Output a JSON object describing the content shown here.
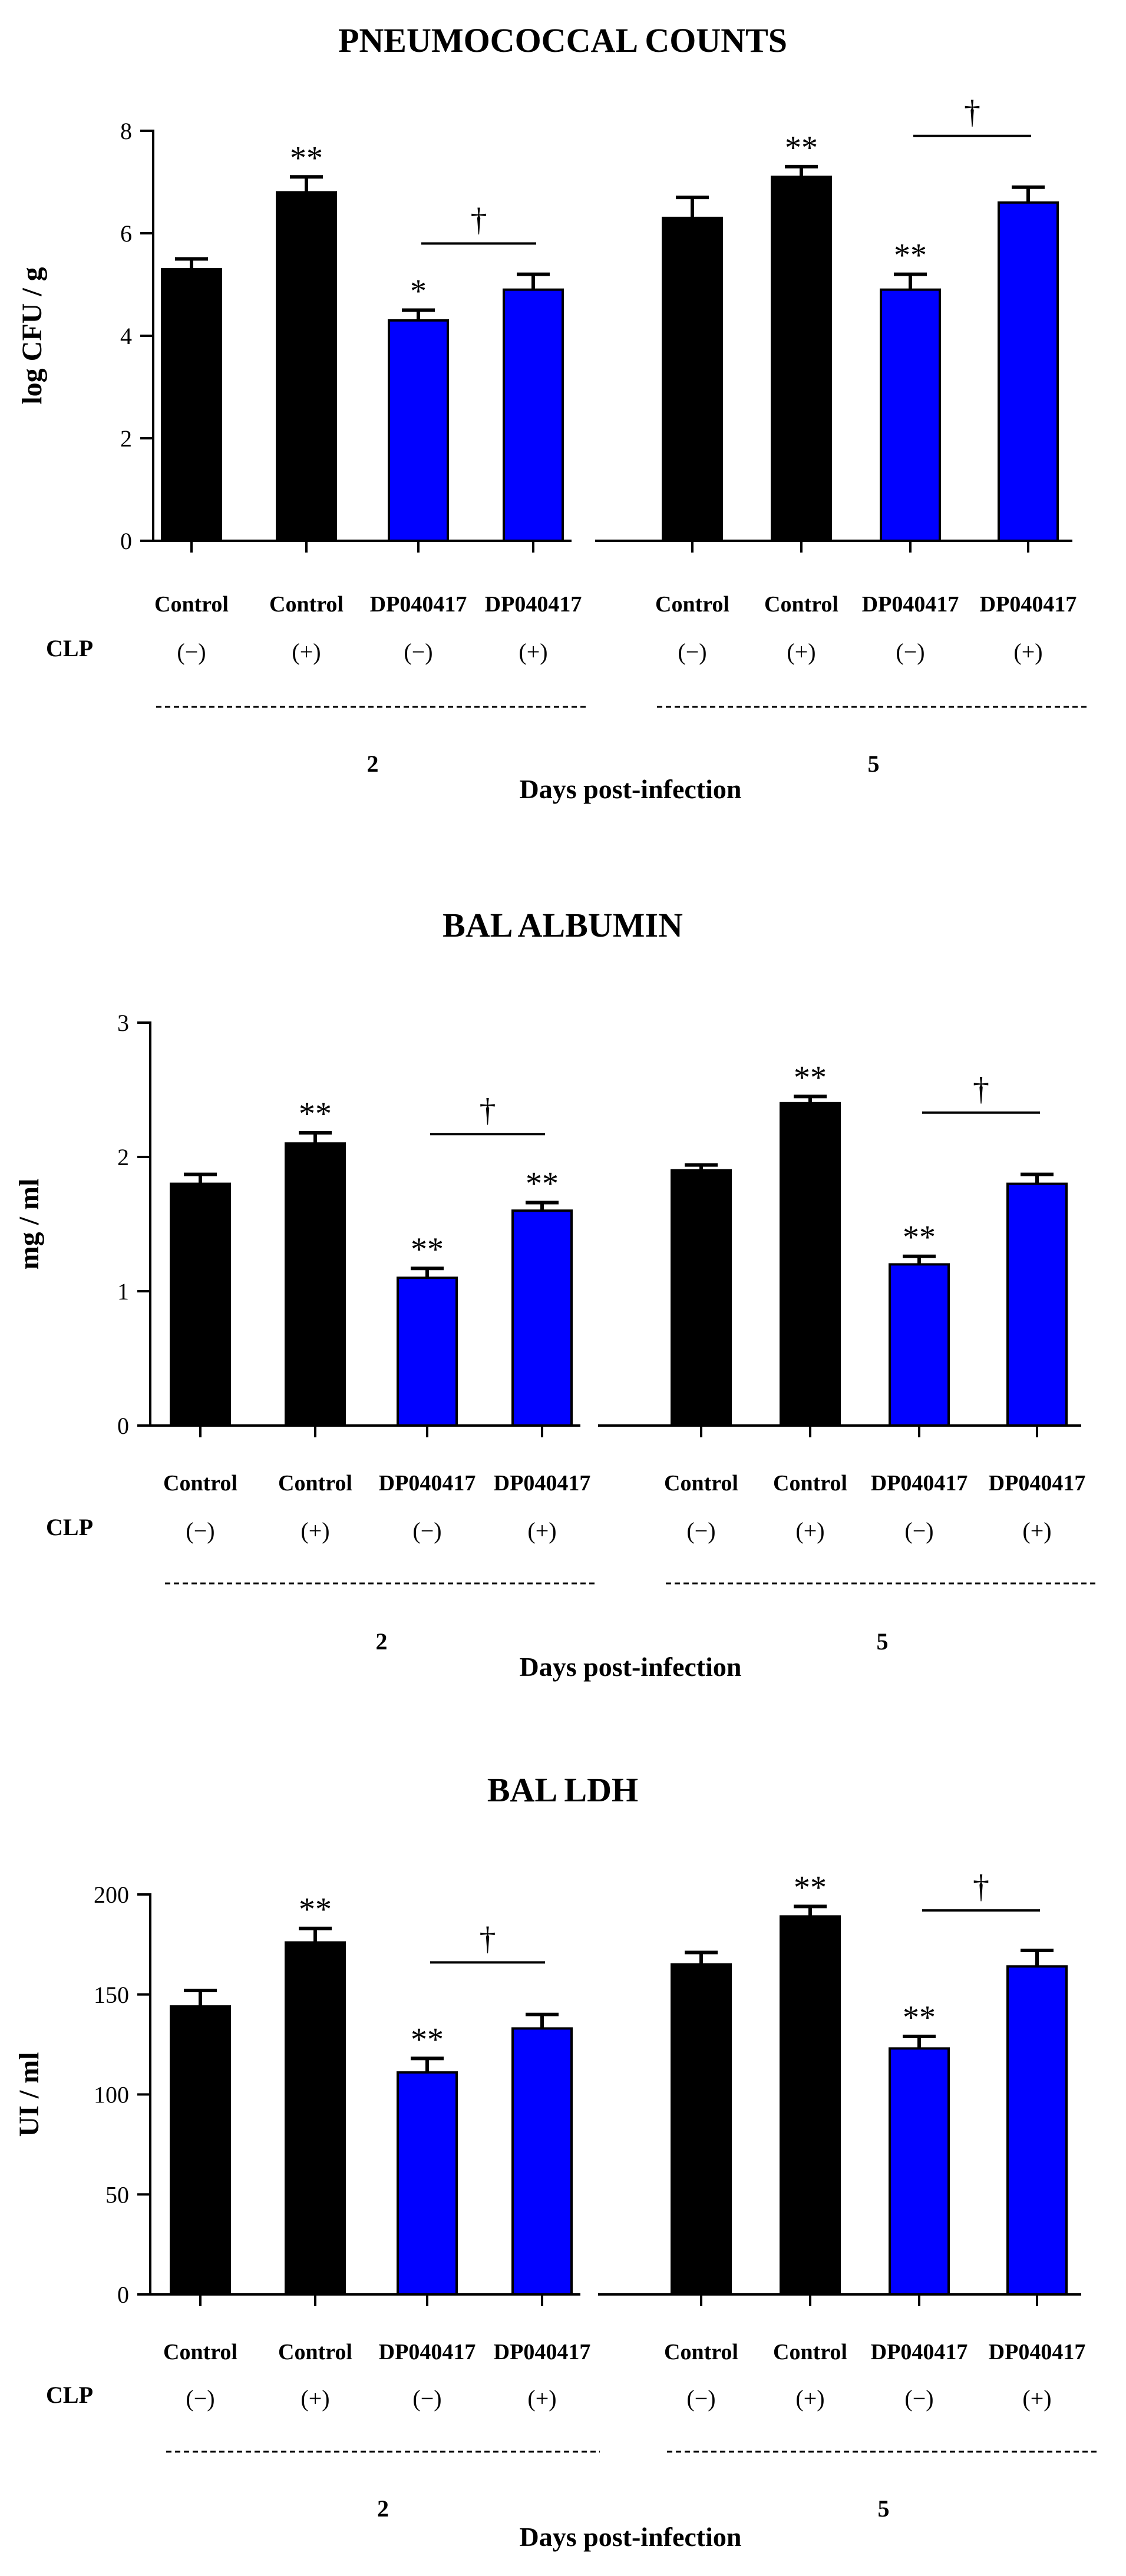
{
  "figure": {
    "charts": [
      {
        "type": "bar",
        "title": "PNEUMOCOCCAL COUNTS",
        "ylabel": "log CFU / g",
        "xlabel": "Days post-infection",
        "ylim": [
          0,
          8
        ],
        "yticks": [
          0,
          2,
          4,
          6,
          8
        ],
        "row_label": "CLP",
        "days": [
          "2",
          "5"
        ],
        "categories": [
          "Control",
          "Control",
          "DP040417",
          "DP040417",
          "Control",
          "Control",
          "DP040417",
          "DP040417"
        ],
        "clp": [
          "(−)",
          "(+)",
          "(−)",
          "(+)",
          "(−)",
          "(+)",
          "(−)",
          "(+)"
        ],
        "values": [
          5.3,
          6.8,
          4.3,
          4.9,
          6.3,
          7.1,
          4.9,
          6.6
        ],
        "errors": [
          0.2,
          0.3,
          0.2,
          0.3,
          0.4,
          0.2,
          0.3,
          0.3
        ],
        "bar_colors": [
          "#000000",
          "#000000",
          "#0000ff",
          "#0000ff",
          "#000000",
          "#000000",
          "#0000ff",
          "#0000ff"
        ],
        "significance": [
          "",
          "**",
          "*",
          "",
          "",
          "**",
          "**",
          ""
        ],
        "comparisons": [
          {
            "bars": [
              2,
              3
            ],
            "symbol": "†",
            "level": 5.8
          },
          {
            "bars": [
              6,
              7
            ],
            "symbol": "†",
            "level": 7.9
          }
        ]
      },
      {
        "type": "bar",
        "title": "BAL ALBUMIN",
        "ylabel": "mg / ml",
        "xlabel": "Days post-infection",
        "ylim": [
          0,
          3
        ],
        "yticks": [
          0,
          1,
          2,
          3
        ],
        "row_label": "CLP",
        "days": [
          "2",
          "5"
        ],
        "categories": [
          "Control",
          "Control",
          "DP040417",
          "DP040417",
          "Control",
          "Control",
          "DP040417",
          "DP040417"
        ],
        "clp": [
          "(−)",
          "(+)",
          "(−)",
          "(+)",
          "(−)",
          "(+)",
          "(−)",
          "(+)"
        ],
        "values": [
          1.8,
          2.1,
          1.1,
          1.6,
          1.9,
          2.4,
          1.2,
          1.8
        ],
        "errors": [
          0.07,
          0.08,
          0.07,
          0.06,
          0.04,
          0.05,
          0.06,
          0.07
        ],
        "bar_colors": [
          "#000000",
          "#000000",
          "#0000ff",
          "#0000ff",
          "#000000",
          "#000000",
          "#0000ff",
          "#0000ff"
        ],
        "significance": [
          "",
          "**",
          "**",
          "**",
          "",
          "**",
          "**",
          ""
        ],
        "comparisons": [
          {
            "bars": [
              2,
              3
            ],
            "symbol": "†",
            "level": 2.17
          },
          {
            "bars": [
              6,
              7
            ],
            "symbol": "†",
            "level": 2.33
          }
        ]
      },
      {
        "type": "bar",
        "title": "BAL LDH",
        "ylabel": "UI / ml",
        "xlabel": "Days post-infection",
        "ylim": [
          0,
          200
        ],
        "yticks": [
          0,
          50,
          100,
          150,
          200
        ],
        "row_label": "CLP",
        "days": [
          "2",
          "5"
        ],
        "categories": [
          "Control",
          "Control",
          "DP040417",
          "DP040417",
          "Control",
          "Control",
          "DP040417",
          "DP040417"
        ],
        "clp": [
          "(−)",
          "(+)",
          "(−)",
          "(+)",
          "(−)",
          "(+)",
          "(−)",
          "(+)"
        ],
        "values": [
          144,
          176,
          111,
          133,
          165,
          189,
          123,
          164
        ],
        "errors": [
          8,
          7,
          7,
          7,
          6,
          5,
          6,
          8
        ],
        "bar_colors": [
          "#000000",
          "#000000",
          "#0000ff",
          "#0000ff",
          "#000000",
          "#000000",
          "#0000ff",
          "#0000ff"
        ],
        "significance": [
          "",
          "**",
          "**",
          "",
          "",
          "**",
          "**",
          ""
        ],
        "comparisons": [
          {
            "bars": [
              2,
              3
            ],
            "symbol": "†",
            "level": 166
          },
          {
            "bars": [
              6,
              7
            ],
            "symbol": "†",
            "level": 192
          }
        ]
      }
    ]
  },
  "chart_data": [
    {
      "type": "bar",
      "title": "PNEUMOCOCCAL COUNTS",
      "ylabel": "log CFU / g",
      "xlabel": "Days post-infection",
      "ylim": [
        0,
        8
      ],
      "categories": [
        "Control (−) day 2",
        "Control (+) day 2",
        "DP040417 (−) day 2",
        "DP040417 (+) day 2",
        "Control (−) day 5",
        "Control (+) day 5",
        "DP040417 (−) day 5",
        "DP040417 (+) day 5"
      ],
      "values": [
        5.3,
        6.8,
        4.3,
        4.9,
        6.3,
        7.1,
        4.9,
        6.6
      ],
      "errors": [
        0.2,
        0.3,
        0.2,
        0.3,
        0.4,
        0.2,
        0.3,
        0.3
      ]
    },
    {
      "type": "bar",
      "title": "BAL ALBUMIN",
      "ylabel": "mg / ml",
      "xlabel": "Days post-infection",
      "ylim": [
        0,
        3
      ],
      "categories": [
        "Control (−) day 2",
        "Control (+) day 2",
        "DP040417 (−) day 2",
        "DP040417 (+) day 2",
        "Control (−) day 5",
        "Control (+) day 5",
        "DP040417 (−) day 5",
        "DP040417 (+) day 5"
      ],
      "values": [
        1.8,
        2.1,
        1.1,
        1.6,
        1.9,
        2.4,
        1.2,
        1.8
      ],
      "errors": [
        0.07,
        0.08,
        0.07,
        0.06,
        0.04,
        0.05,
        0.06,
        0.07
      ]
    },
    {
      "type": "bar",
      "title": "BAL LDH",
      "ylabel": "UI / ml",
      "xlabel": "Days post-infection",
      "ylim": [
        0,
        200
      ],
      "categories": [
        "Control (−) day 2",
        "Control (+) day 2",
        "DP040417 (−) day 2",
        "DP040417 (+) day 2",
        "Control (−) day 5",
        "Control (+) day 5",
        "DP040417 (−) day 5",
        "DP040417 (+) day 5"
      ],
      "values": [
        144,
        176,
        111,
        133,
        165,
        189,
        123,
        164
      ],
      "errors": [
        8,
        7,
        7,
        7,
        6,
        5,
        6,
        8
      ]
    }
  ]
}
